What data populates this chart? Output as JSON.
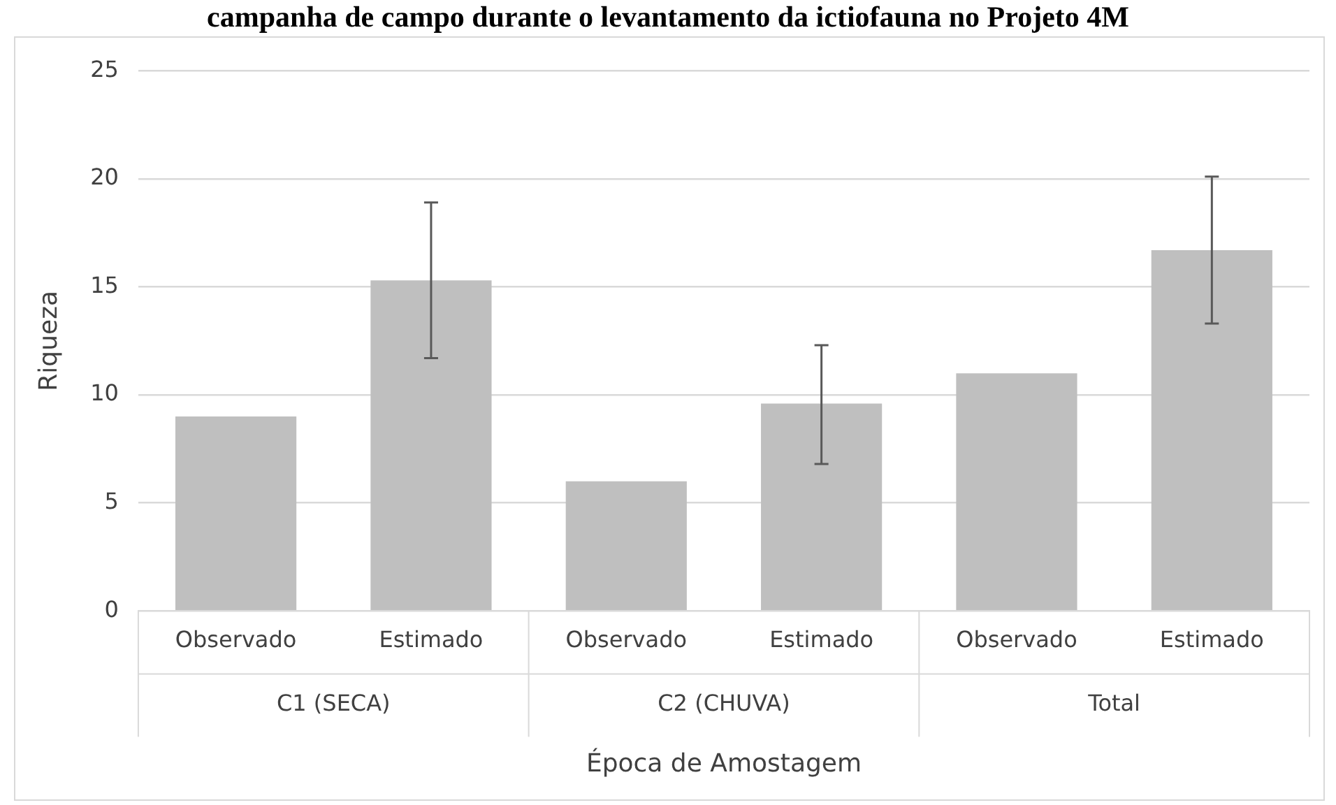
{
  "chart_data": {
    "type": "bar",
    "title": "campanha de campo durante o levantamento da ictiofauna no Projeto 4M",
    "categories": [
      "Observado",
      "Estimado",
      "Observado",
      "Estimado",
      "Observado",
      "Estimado"
    ],
    "values": [
      9,
      15.3,
      6,
      9.6,
      11,
      16.7
    ],
    "errors": [
      null,
      [
        11.7,
        18.9
      ],
      null,
      [
        6.8,
        12.3
      ],
      null,
      [
        13.3,
        20.1
      ]
    ],
    "color": "#bfbfbf",
    "annotations": [
      "C1 (SECA)",
      "C2 (CHUVA)",
      "Total"
    ],
    "xlabel": "Época de Amostagem",
    "ylabel": "Riqueza",
    "ylim": [
      0,
      25
    ],
    "yticks": [
      0,
      5,
      10,
      15,
      20,
      25
    ],
    "grid": "y",
    "legend": false
  }
}
